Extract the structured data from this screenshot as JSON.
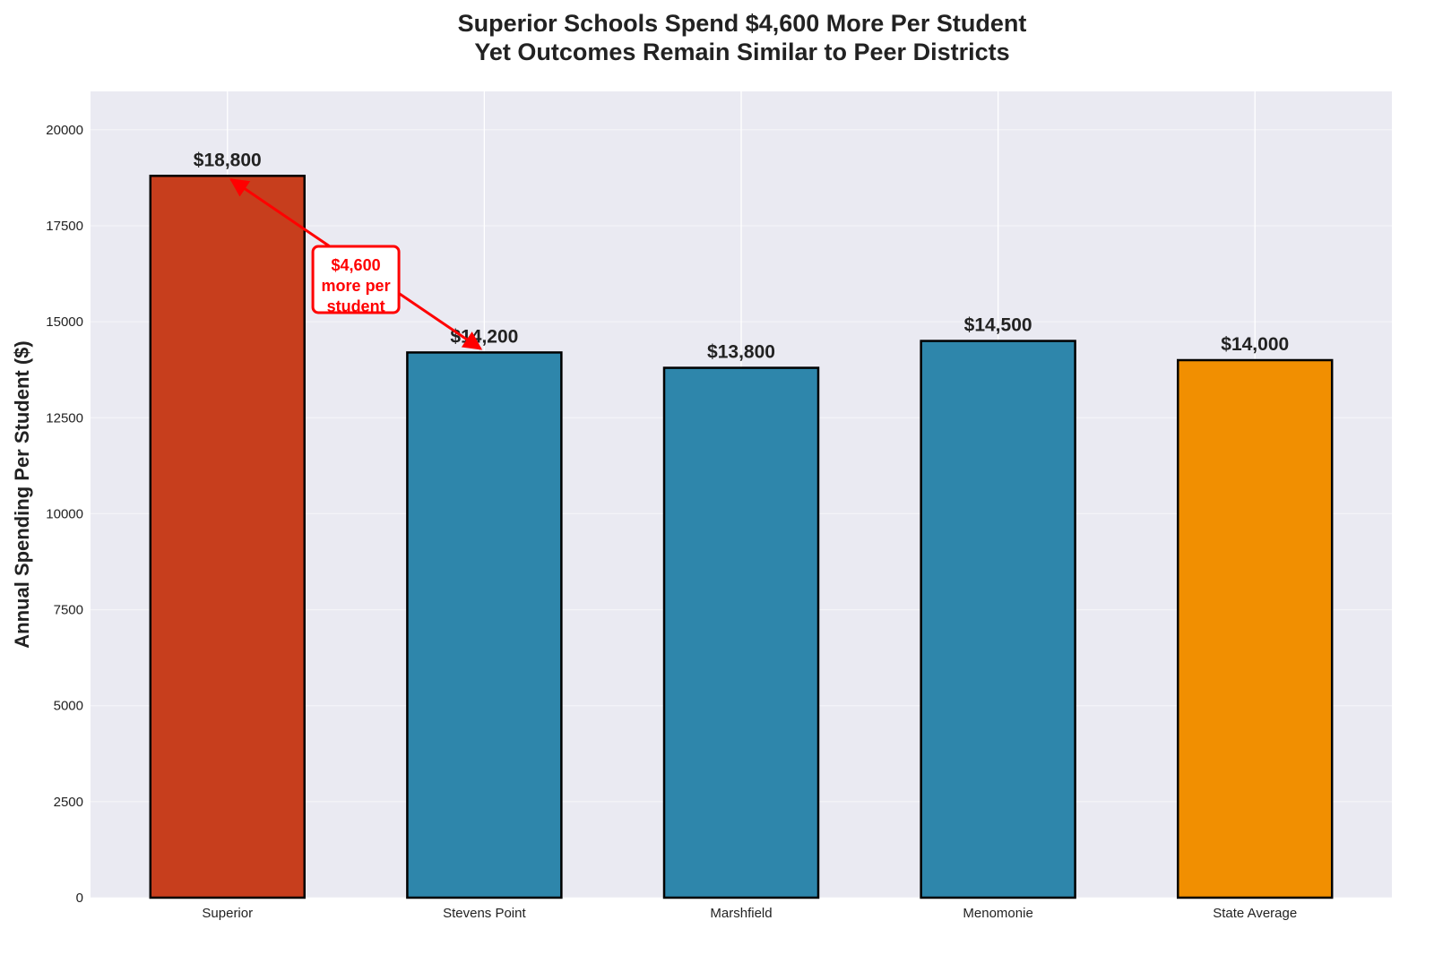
{
  "chart_data": {
    "type": "bar",
    "title": "Superior Schools Spend $4,600 More Per Student\nYet Outcomes Remain Similar to Peer Districts",
    "title_lines": [
      "Superior Schools Spend $4,600 More Per Student",
      "Yet Outcomes Remain Similar to Peer Districts"
    ],
    "xlabel": "",
    "ylabel": "Annual Spending Per Student ($)",
    "categories": [
      "Superior",
      "Stevens Point",
      "Marshfield",
      "Menomonie",
      "State Average"
    ],
    "values": [
      18800,
      14200,
      13800,
      14500,
      14000
    ],
    "data_labels": [
      "$18,800",
      "$14,200",
      "$13,800",
      "$14,500",
      "$14,000"
    ],
    "colors": [
      "#C73E1D",
      "#2E86AB",
      "#2E86AB",
      "#2E86AB",
      "#F18F01"
    ],
    "ylim": [
      0,
      21000
    ],
    "yticks": [
      0,
      2500,
      5000,
      7500,
      10000,
      12500,
      15000,
      17500,
      20000
    ],
    "ytick_labels": [
      "0",
      "2500",
      "5000",
      "7500",
      "10000",
      "12500",
      "15000",
      "17500",
      "20000"
    ],
    "grid": true,
    "background": "#EAEAF2",
    "annotation": {
      "text_lines": [
        "$4,600",
        "more per",
        "student"
      ],
      "color": "#FF0000",
      "from": {
        "category": "Superior",
        "value": 18800
      },
      "to": {
        "category": "Stevens Point",
        "value": 14200
      },
      "text_position": {
        "x": 0.5,
        "y": 16100
      }
    }
  }
}
